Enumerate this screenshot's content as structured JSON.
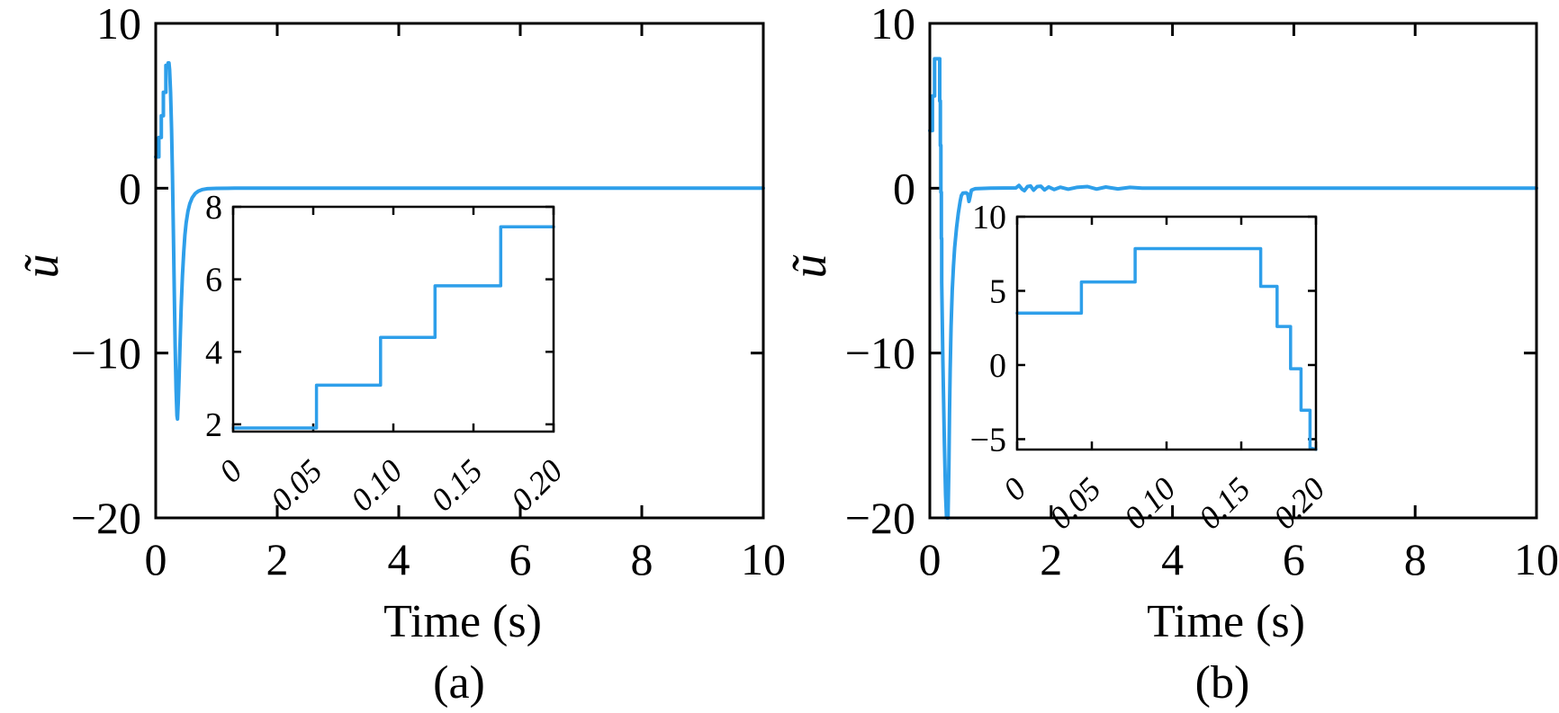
{
  "figure": {
    "background_color": "#ffffff",
    "axis_color": "#000000",
    "line_color": "#2e9fea"
  },
  "chart_data": [
    {
      "type": "line",
      "title": "(a)",
      "xlabel": "Time (s)",
      "ylabel": "ũ",
      "xlim": [
        0,
        10
      ],
      "ylim": [
        -20,
        10
      ],
      "grid": false,
      "legend": "none",
      "xticks": [
        0,
        2,
        4,
        6,
        8,
        10
      ],
      "xtick_labels": [
        "0",
        "2",
        "4",
        "6",
        "8",
        "10"
      ],
      "yticks": [
        10,
        0,
        -10,
        -20
      ],
      "ytick_labels": [
        "10",
        "0",
        "−10",
        "−20"
      ],
      "series": [
        {
          "name": "u-tilde-control-signal",
          "points": [
            [
              0,
              1.9
            ],
            [
              0.052,
              1.9
            ],
            [
              0.052,
              3.08
            ],
            [
              0.092,
              3.08
            ],
            [
              0.092,
              4.4
            ],
            [
              0.126,
              4.4
            ],
            [
              0.126,
              5.82
            ],
            [
              0.167,
              5.82
            ],
            [
              0.167,
              7.45
            ],
            [
              0.2,
              7.45
            ],
            [
              0.205,
              7.6
            ],
            [
              0.218,
              7.6
            ],
            [
              0.228,
              7.2
            ],
            [
              0.245,
              5.8
            ],
            [
              0.26,
              3.6
            ],
            [
              0.275,
              0.8
            ],
            [
              0.29,
              -2.6
            ],
            [
              0.305,
              -6.2
            ],
            [
              0.32,
              -9.6
            ],
            [
              0.335,
              -12.2
            ],
            [
              0.35,
              -13.8
            ],
            [
              0.358,
              -14.0
            ],
            [
              0.37,
              -13.0
            ],
            [
              0.385,
              -11.4
            ],
            [
              0.4,
              -9.5
            ],
            [
              0.42,
              -7.2
            ],
            [
              0.44,
              -5.3
            ],
            [
              0.46,
              -3.9
            ],
            [
              0.48,
              -2.85
            ],
            [
              0.5,
              -2.1
            ],
            [
              0.53,
              -1.4
            ],
            [
              0.56,
              -0.95
            ],
            [
              0.6,
              -0.58
            ],
            [
              0.65,
              -0.32
            ],
            [
              0.7,
              -0.18
            ],
            [
              0.77,
              -0.08
            ],
            [
              0.85,
              -0.03
            ],
            [
              1.0,
              -0.01
            ],
            [
              1.3,
              0
            ],
            [
              10,
              0
            ]
          ]
        }
      ],
      "inset": {
        "xlim": [
          0,
          0.2
        ],
        "ylim": [
          1.8,
          8.0
        ],
        "xticks": [
          0,
          0.05,
          0.1,
          0.15,
          0.2
        ],
        "xtick_labels": [
          "0",
          "0.05",
          "0.10",
          "0.15",
          "0.20"
        ],
        "yticks": [
          8,
          6,
          4,
          2
        ],
        "ytick_labels": [
          "8",
          "6",
          "4",
          "2"
        ],
        "points": [
          [
            0,
            1.9
          ],
          [
            0.052,
            1.9
          ],
          [
            0.052,
            3.08
          ],
          [
            0.092,
            3.08
          ],
          [
            0.092,
            4.4
          ],
          [
            0.126,
            4.4
          ],
          [
            0.126,
            5.82
          ],
          [
            0.167,
            5.82
          ],
          [
            0.167,
            7.45
          ],
          [
            0.2,
            7.45
          ]
        ]
      }
    },
    {
      "type": "line",
      "title": "(b)",
      "xlabel": "Time (s)",
      "ylabel": "ũ",
      "xlim": [
        0,
        10
      ],
      "ylim": [
        -20,
        10
      ],
      "grid": false,
      "legend": "none",
      "xticks": [
        0,
        2,
        4,
        6,
        8,
        10
      ],
      "xtick_labels": [
        "0",
        "2",
        "4",
        "6",
        "8",
        "10"
      ],
      "yticks": [
        10,
        0,
        -10,
        -20
      ],
      "ytick_labels": [
        "10",
        "0",
        "−10",
        "−20"
      ],
      "series": [
        {
          "name": "u-tilde-control-signal",
          "points": [
            [
              0,
              3.5
            ],
            [
              0.043,
              3.5
            ],
            [
              0.043,
              5.6
            ],
            [
              0.079,
              5.6
            ],
            [
              0.079,
              7.85
            ],
            [
              0.163,
              7.85
            ],
            [
              0.163,
              5.3
            ],
            [
              0.174,
              5.3
            ],
            [
              0.174,
              2.6
            ],
            [
              0.183,
              2.6
            ],
            [
              0.183,
              -0.25
            ],
            [
              0.19,
              -0.25
            ],
            [
              0.19,
              -3.05
            ],
            [
              0.196,
              -3.05
            ],
            [
              0.196,
              -5.7
            ],
            [
              0.215,
              -10.5
            ],
            [
              0.24,
              -15.5
            ],
            [
              0.26,
              -18.6
            ],
            [
              0.275,
              -19.9
            ],
            [
              0.285,
              -20
            ],
            [
              0.3,
              -20
            ],
            [
              0.315,
              -16.8
            ],
            [
              0.325,
              -13.5
            ],
            [
              0.335,
              -11.0
            ],
            [
              0.35,
              -8.4
            ],
            [
              0.37,
              -6.2
            ],
            [
              0.39,
              -4.7
            ],
            [
              0.41,
              -3.6
            ],
            [
              0.44,
              -2.4
            ],
            [
              0.47,
              -1.5
            ],
            [
              0.5,
              -0.8
            ],
            [
              0.52,
              -0.45
            ],
            [
              0.545,
              -0.3
            ],
            [
              0.6,
              -0.28
            ],
            [
              0.625,
              -0.35
            ],
            [
              0.645,
              -0.8
            ],
            [
              0.665,
              -0.5
            ],
            [
              0.685,
              -0.12
            ],
            [
              0.75,
              -0.03
            ],
            [
              1.0,
              0
            ],
            [
              1.42,
              0.02
            ],
            [
              1.47,
              0.17
            ],
            [
              1.52,
              -0.05
            ],
            [
              1.56,
              -0.15
            ],
            [
              1.61,
              0.1
            ],
            [
              1.66,
              0.14
            ],
            [
              1.71,
              -0.12
            ],
            [
              1.77,
              0.1
            ],
            [
              1.83,
              0.12
            ],
            [
              1.89,
              -0.1
            ],
            [
              1.96,
              0.08
            ],
            [
              2.05,
              -0.08
            ],
            [
              2.15,
              0.06
            ],
            [
              2.28,
              -0.06
            ],
            [
              2.42,
              0.05
            ],
            [
              2.6,
              0.1
            ],
            [
              2.75,
              -0.05
            ],
            [
              2.9,
              0.07
            ],
            [
              3.1,
              -0.04
            ],
            [
              3.3,
              0.05
            ],
            [
              3.5,
              0
            ],
            [
              10,
              0
            ]
          ]
        }
      ],
      "inset": {
        "xlim": [
          0,
          0.2
        ],
        "ylim": [
          -5.7,
          10.0
        ],
        "xticks": [
          0,
          0.05,
          0.1,
          0.15,
          0.2
        ],
        "xtick_labels": [
          "0",
          "0.05",
          "0.10",
          "0.15",
          "0.20"
        ],
        "yticks": [
          10,
          5,
          0,
          -5
        ],
        "ytick_labels": [
          "10",
          "5",
          "0",
          "−5"
        ],
        "points": [
          [
            0,
            3.5
          ],
          [
            0.043,
            3.5
          ],
          [
            0.043,
            5.6
          ],
          [
            0.079,
            5.6
          ],
          [
            0.079,
            7.85
          ],
          [
            0.163,
            7.85
          ],
          [
            0.163,
            5.3
          ],
          [
            0.174,
            5.3
          ],
          [
            0.174,
            2.6
          ],
          [
            0.183,
            2.6
          ],
          [
            0.183,
            -0.25
          ],
          [
            0.19,
            -0.25
          ],
          [
            0.19,
            -3.05
          ],
          [
            0.196,
            -3.05
          ],
          [
            0.196,
            -5.6
          ],
          [
            0.2,
            -5.68
          ]
        ]
      }
    }
  ]
}
